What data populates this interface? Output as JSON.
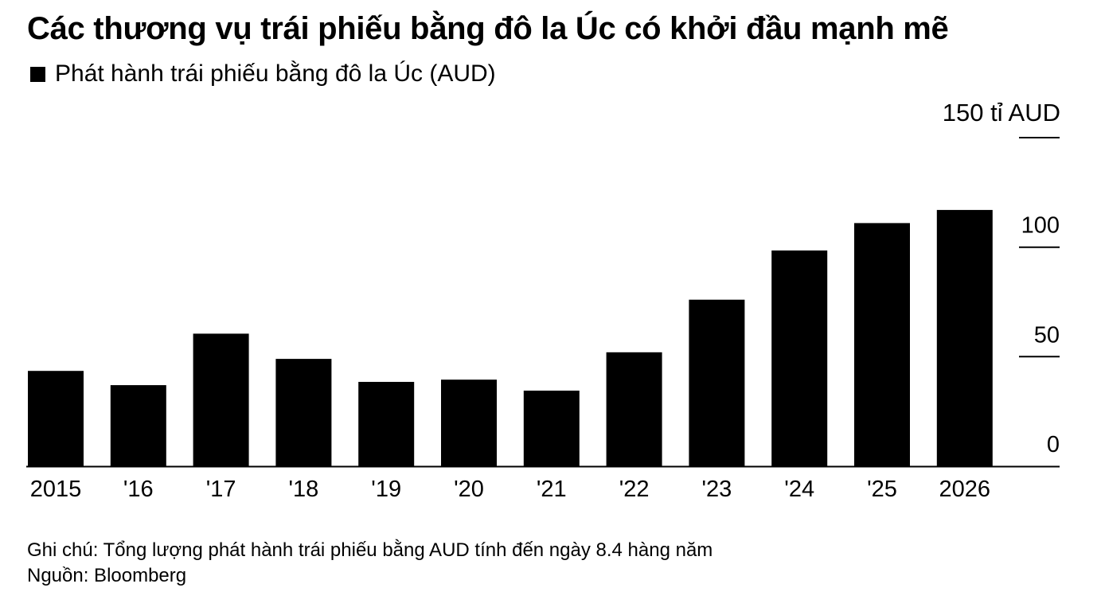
{
  "title": "Các thương vụ trái phiếu bằng đô la Úc có khởi đầu mạnh mẽ",
  "legend_label": "Phát hành trái phiếu bằng đô la Úc (AUD)",
  "y_unit_label": "150 tỉ AUD",
  "note": "Ghi chú: Tổng lượng phát hành trái phiếu bằng AUD tính đến ngày 8.4 hàng năm",
  "source": "Nguồn: Bloomberg",
  "colors": {
    "bar": "#000000",
    "axis": "#000000",
    "background": "#ffffff"
  },
  "chart_data": {
    "type": "bar",
    "categories": [
      "2015",
      "'16",
      "'17",
      "'18",
      "'19",
      "'20",
      "'21",
      "'22",
      "'23",
      "'24",
      "'25",
      "2026"
    ],
    "values": [
      43.5,
      37,
      60.5,
      49,
      38.5,
      39.5,
      34.5,
      52,
      76,
      98.5,
      111,
      117
    ],
    "ylim": [
      0,
      150
    ],
    "yticks": [
      0,
      50,
      100,
      150
    ],
    "ytick_labels": [
      "0",
      "50",
      "100",
      ""
    ],
    "grid": false,
    "y_axis_side": "right"
  }
}
